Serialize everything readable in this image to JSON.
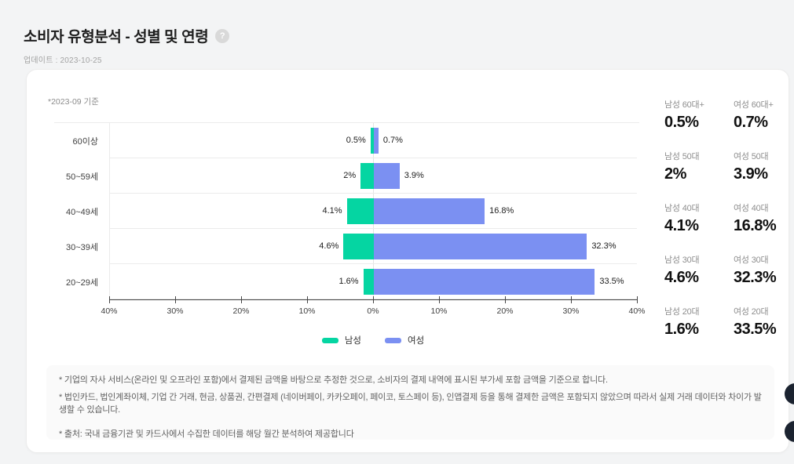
{
  "header": {
    "title": "소비자 유형분석 - 성별 및 연령",
    "help_icon": "?",
    "updated": "업데이트 : 2023-10-25"
  },
  "card": {
    "period_note": "*2023-09 기준"
  },
  "chart_data": {
    "type": "bar",
    "orientation": "horizontal-diverging",
    "title": "소비자 유형분석 - 성별 및 연령 (2023-09 기준)",
    "categories": [
      "60이상",
      "50~59세",
      "40~49세",
      "30~39세",
      "20~29세"
    ],
    "series": [
      {
        "name": "남성",
        "direction": "left",
        "color": "#05d5a2",
        "values": [
          0.5,
          2,
          4.1,
          4.6,
          1.6
        ],
        "labels": [
          "0.5%",
          "2%",
          "4.1%",
          "4.6%",
          "1.6%"
        ]
      },
      {
        "name": "여성",
        "direction": "right",
        "color": "#7b90f2",
        "values": [
          0.7,
          3.9,
          16.8,
          32.3,
          33.5
        ],
        "labels": [
          "0.7%",
          "3.9%",
          "16.8%",
          "32.3%",
          "33.5%"
        ]
      }
    ],
    "x_ticks": [
      "40%",
      "30%",
      "20%",
      "10%",
      "0%",
      "10%",
      "20%",
      "30%",
      "40%"
    ],
    "x_max_percent": 40,
    "grid": true,
    "legend_position": "bottom"
  },
  "stats_panel": {
    "cells": [
      {
        "label": "남성 60대+",
        "value": "0.5%"
      },
      {
        "label": "여성 60대+",
        "value": "0.7%"
      },
      {
        "label": "남성 50대",
        "value": "2%"
      },
      {
        "label": "여성 50대",
        "value": "3.9%"
      },
      {
        "label": "남성 40대",
        "value": "4.1%"
      },
      {
        "label": "여성 40대",
        "value": "16.8%"
      },
      {
        "label": "남성 30대",
        "value": "4.6%"
      },
      {
        "label": "여성 30대",
        "value": "32.3%"
      },
      {
        "label": "남성 20대",
        "value": "1.6%"
      },
      {
        "label": "여성 20대",
        "value": "33.5%"
      }
    ]
  },
  "footnotes": {
    "lines": [
      "* 기업의 자사 서비스(온라인 및 오프라인 포함)에서 결제된 금액을 바탕으로 추정한 것으로, 소비자의 결제 내역에 표시된 부가세 포함 금액을 기준으로 합니다.",
      "* 법인카드, 법인계좌이체, 기업 간 거래, 현금, 상품권, 간편결제 (네이버페이, 카카오페이, 페이코, 토스페이 등), 인앱결제 등을 통해 결제한 금액은 포함되지 않았으며 따라서 실제 거래 데이터와 차이가 발생할 수 있습니다.",
      "* 출처:  국내 금융기관 및 카드사에서 수집한 데이터를 해당 월간 분석하여 제공합니다"
    ]
  }
}
